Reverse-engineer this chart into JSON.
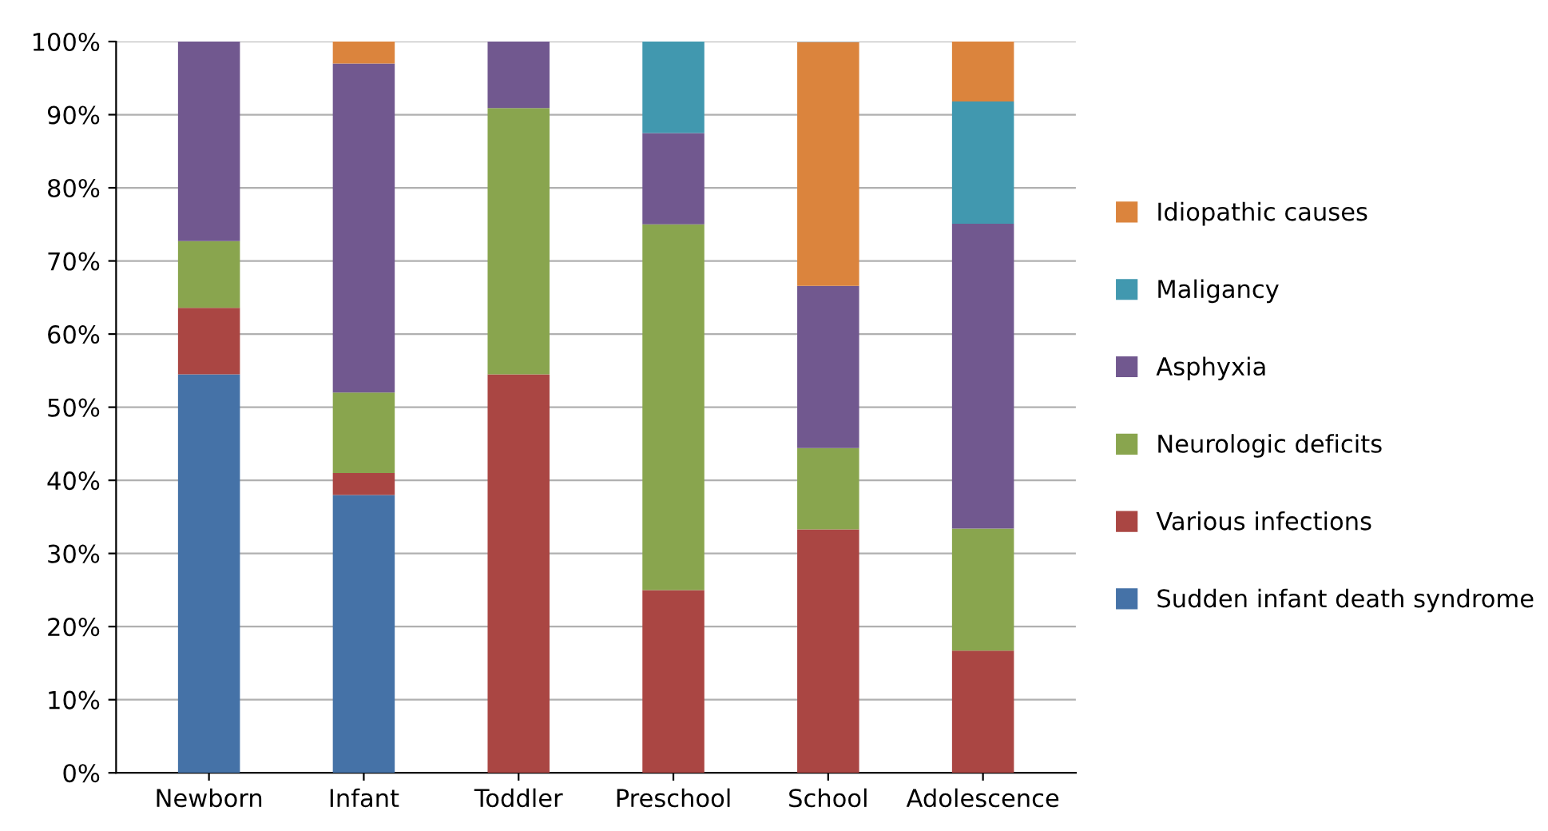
{
  "chart_data": {
    "type": "bar",
    "stacked": true,
    "categories": [
      "Newborn",
      "Infant",
      "Toddler",
      "Preschool",
      "School",
      "Adolescence"
    ],
    "series": [
      {
        "name": "Sudden infant death syndrome",
        "color": "#4572a7",
        "values": [
          54.5,
          38,
          null,
          null,
          null,
          null
        ]
      },
      {
        "name": "Various infections",
        "color": "#aa4643",
        "values": [
          9.1,
          3,
          54.5,
          25,
          33.3,
          16.7
        ]
      },
      {
        "name": "Neurologic deficits",
        "color": "#89a54e",
        "values": [
          9.1,
          11,
          36.4,
          50,
          11.1,
          16.7
        ]
      },
      {
        "name": "Asphyxia",
        "color": "#71588f",
        "values": [
          27.3,
          45,
          9.1,
          12.5,
          22.2,
          41.7
        ]
      },
      {
        "name": "Maligancy",
        "color": "#4198af",
        "values": [
          null,
          null,
          null,
          12.5,
          null,
          16.7
        ]
      },
      {
        "name": "Idiopathic causes",
        "color": "#db843d",
        "values": [
          null,
          3,
          null,
          null,
          33.3,
          8.3
        ]
      }
    ],
    "ylim": [
      0,
      100
    ],
    "yticks": [
      {
        "value": 0,
        "label": "0%"
      },
      {
        "value": 10,
        "label": "10%"
      },
      {
        "value": 20,
        "label": "20%"
      },
      {
        "value": 30,
        "label": "30%"
      },
      {
        "value": 40,
        "label": "40%"
      },
      {
        "value": 50,
        "label": "50%"
      },
      {
        "value": 60,
        "label": "60%"
      },
      {
        "value": 70,
        "label": "70%"
      },
      {
        "value": 80,
        "label": "80%"
      },
      {
        "value": 90,
        "label": "90%"
      },
      {
        "value": 100,
        "label": "100%"
      }
    ],
    "grid": "y",
    "legend": "right"
  }
}
